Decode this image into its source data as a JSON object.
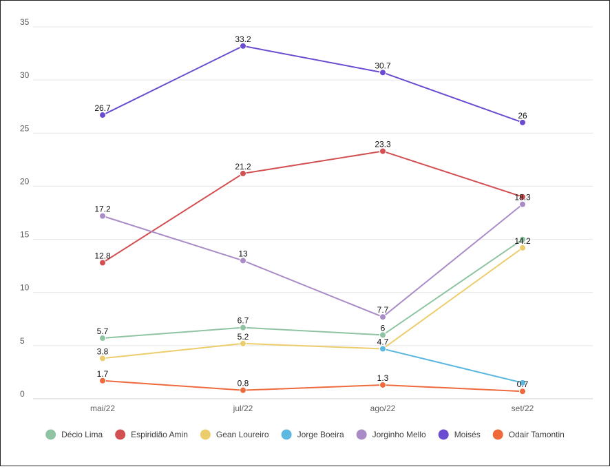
{
  "chart_data": {
    "type": "line",
    "categories": [
      "mai/22",
      "jul/22",
      "ago/22",
      "set/22"
    ],
    "ylim": [
      0,
      35
    ],
    "yticks": [
      0,
      5,
      10,
      15,
      20,
      25,
      30,
      35
    ],
    "grid": "horizontal",
    "legend_position": "bottom",
    "series": [
      {
        "name": "Décio Lima",
        "color": "#8fc4a3",
        "values": [
          5.7,
          6.7,
          6,
          15
        ]
      },
      {
        "name": "Espiridião Amin",
        "color": "#d24f52",
        "values": [
          12.8,
          21.2,
          23.3,
          19
        ]
      },
      {
        "name": "Gean Loureiro",
        "color": "#eccd6c",
        "values": [
          3.8,
          5.2,
          4.7,
          14.2
        ]
      },
      {
        "name": "Jorge Boeira",
        "color": "#5cb8de",
        "values": [
          null,
          null,
          4.7,
          1.5
        ]
      },
      {
        "name": "Jorginho Mello",
        "color": "#a98bc6",
        "values": [
          17.2,
          13,
          7.7,
          18.3
        ]
      },
      {
        "name": "Moisés",
        "color": "#6a4bd1",
        "values": [
          26.7,
          33.2,
          30.7,
          26
        ]
      },
      {
        "name": "Odair Tamontin",
        "color": "#ee6a3c",
        "values": [
          1.7,
          0.8,
          1.3,
          0.7
        ]
      }
    ],
    "data_labels": [
      {
        "series": "Moisés",
        "index": 0,
        "text": "26.7"
      },
      {
        "series": "Moisés",
        "index": 1,
        "text": "33.2"
      },
      {
        "series": "Moisés",
        "index": 2,
        "text": "30.7"
      },
      {
        "series": "Moisés",
        "index": 3,
        "text": "26"
      },
      {
        "series": "Espiridião Amin",
        "index": 0,
        "text": "12.8"
      },
      {
        "series": "Espiridião Amin",
        "index": 1,
        "text": "21.2"
      },
      {
        "series": "Espiridião Amin",
        "index": 2,
        "text": "23.3"
      },
      {
        "series": "Jorginho Mello",
        "index": 0,
        "text": "17.2"
      },
      {
        "series": "Jorginho Mello",
        "index": 1,
        "text": "13"
      },
      {
        "series": "Jorginho Mello",
        "index": 2,
        "text": "7.7"
      },
      {
        "series": "Jorginho Mello",
        "index": 3,
        "text": "18.3"
      },
      {
        "series": "Décio Lima",
        "index": 0,
        "text": "5.7"
      },
      {
        "series": "Décio Lima",
        "index": 1,
        "text": "6.7"
      },
      {
        "series": "Décio Lima",
        "index": 2,
        "text": "6"
      },
      {
        "series": "Gean Loureiro",
        "index": 0,
        "text": "3.8"
      },
      {
        "series": "Gean Loureiro",
        "index": 1,
        "text": "5.2"
      },
      {
        "series": "Gean Loureiro",
        "index": 2,
        "text": "4.7"
      },
      {
        "series": "Gean Loureiro",
        "index": 3,
        "text": "14.2"
      },
      {
        "series": "Odair Tamontin",
        "index": 0,
        "text": "1.7"
      },
      {
        "series": "Odair Tamontin",
        "index": 1,
        "text": "0.8"
      },
      {
        "series": "Odair Tamontin",
        "index": 2,
        "text": "1.3"
      },
      {
        "series": "Odair Tamontin",
        "index": 3,
        "text": "0.7"
      }
    ]
  }
}
